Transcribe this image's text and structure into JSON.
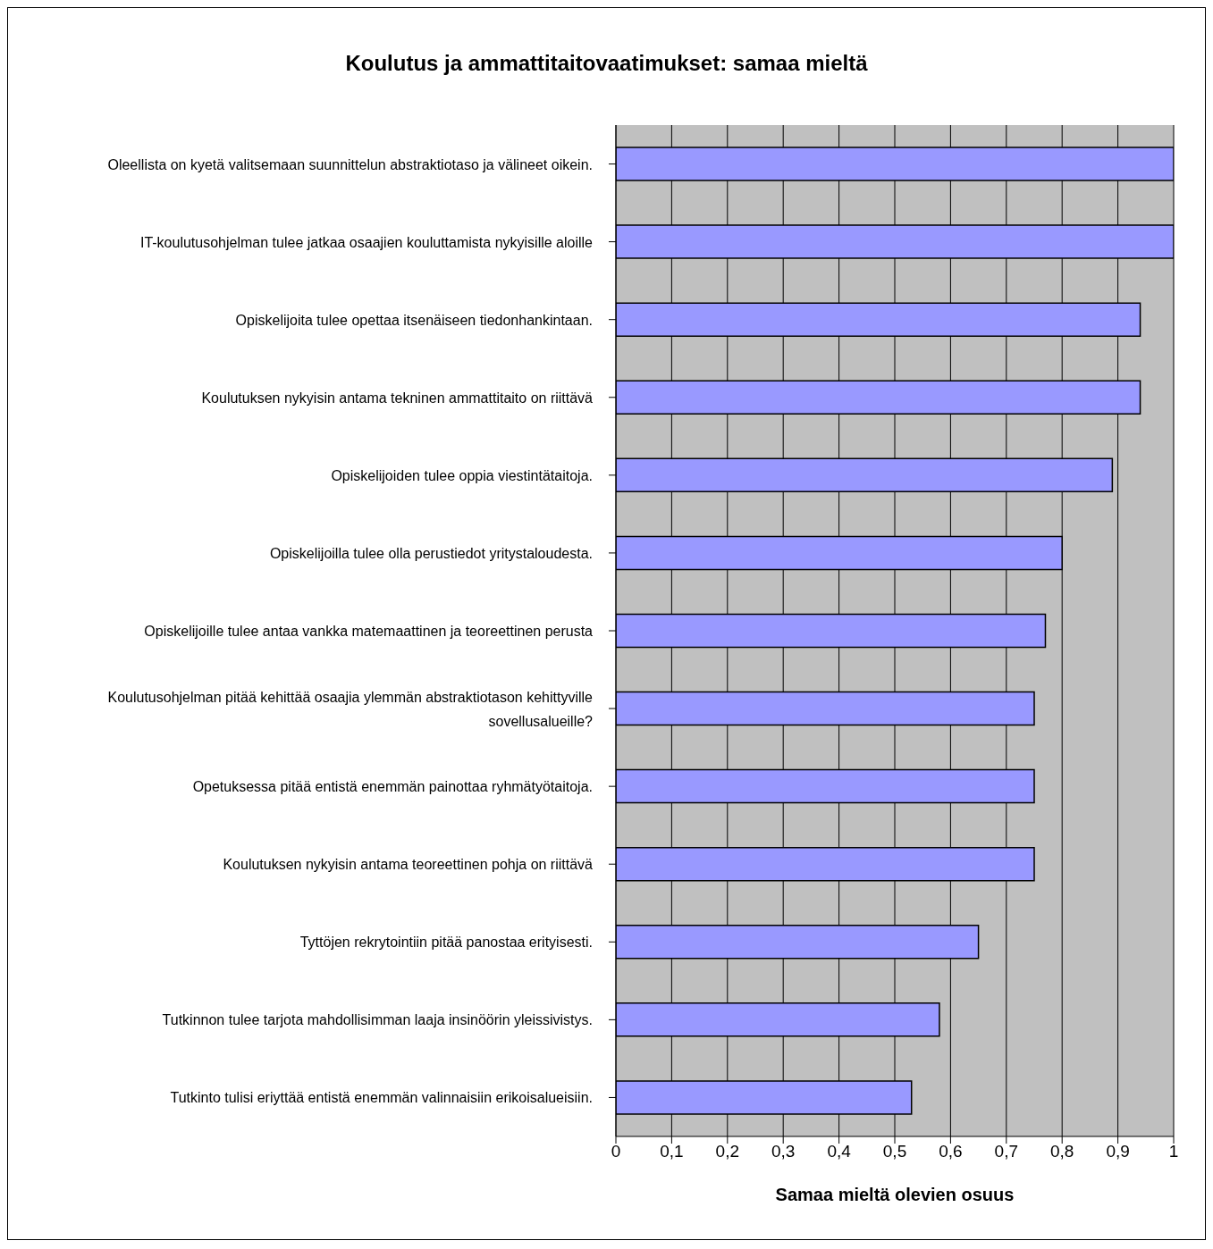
{
  "chart_data": {
    "type": "bar",
    "orientation": "horizontal",
    "title": "Koulutus ja ammattitaitovaatimukset: samaa mieltä",
    "xlabel": "Samaa mieltä olevien osuus",
    "categories": [
      "Oleellista on kyetä valitsemaan suunnittelun abstraktiotaso ja välineet oikein.",
      "IT-koulutusohjelman tulee jatkaa osaajien kouluttamista nykyisille aloille",
      "Opiskelijoita tulee opettaa itsenäiseen tiedonhankintaan.",
      "Koulutuksen nykyisin antama tekninen ammattitaito on riittävä",
      "Opiskelijoiden tulee oppia  viestintätaitoja.",
      "Opiskelijoilla tulee olla perustiedot yritystaloudesta.",
      "Opiskelijoille tulee antaa vankka matemaattinen ja teoreettinen perusta",
      "Koulutusohjelman pitää kehittää osaajia ylemmän abstraktiotason kehittyville sovellusalueille?",
      "Opetuksessa pitää entistä enemmän painottaa ryhmätyötaitoja.",
      "Koulutuksen nykyisin antama teoreettinen pohja on riittävä",
      "Tyttöjen rekrytointiin pitää panostaa erityisesti.",
      "Tutkinnon tulee tarjota mahdollisimman laaja insinöörin yleissivistys.",
      "Tutkinto tulisi eriyttää entistä enemmän valinnaisiin erikoisalueisiin."
    ],
    "values": [
      1,
      1,
      0.94,
      0.94,
      0.89,
      0.8,
      0.77,
      0.75,
      0.75,
      0.75,
      0.65,
      0.58,
      0.53
    ],
    "color": "#9999ff",
    "xlim": [
      0,
      1
    ],
    "xticks": [
      0,
      {
        "value": 0.1,
        "label": "0,1"
      },
      {
        "value": 0.2,
        "label": "0,2"
      },
      {
        "value": 0.3,
        "label": "0,3"
      },
      {
        "value": 0.4,
        "label": "0,4"
      },
      {
        "value": 0.5,
        "label": "0,5"
      },
      {
        "value": 0.6,
        "label": "0,6"
      },
      {
        "value": 0.7,
        "label": "0,7"
      },
      {
        "value": 0.8,
        "label": "0,8"
      },
      {
        "value": 0.9,
        "label": "0,9"
      },
      1
    ],
    "grid": "x"
  }
}
